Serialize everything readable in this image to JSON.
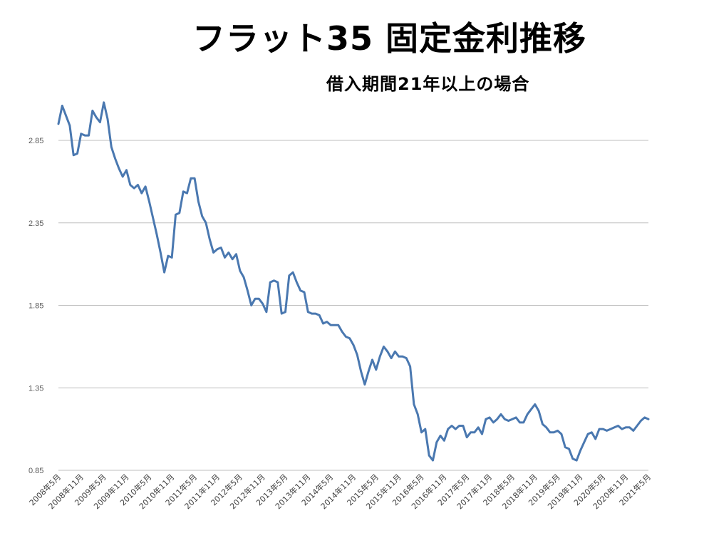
{
  "chart_data": {
    "type": "line",
    "title": "フラット35 固定金利推移",
    "subtitle": "借入期間21年以上の場合",
    "xlabel": "",
    "ylabel": "",
    "ylim": [
      0.85,
      3.05
    ],
    "y_ticks": [
      "0.85",
      "1.35",
      "1.85",
      "2.35",
      "2.85"
    ],
    "x_ticks": [
      "2008年5月",
      "2008年11月",
      "2009年5月",
      "2009年11月",
      "2010年5月",
      "2010年11月",
      "2011年5月",
      "2011年11月",
      "2012年5月",
      "2012年11月",
      "2013年5月",
      "2013年11月",
      "2014年5月",
      "2014年11月",
      "2015年5月",
      "2015年11月",
      "2016年5月",
      "2016年11月",
      "2017年5月",
      "2017年11月",
      "2018年5月",
      "2018年11月",
      "2019年5月",
      "2019年11月",
      "2020年5月",
      "2020年11月",
      "2021年5月"
    ],
    "grid": true,
    "series": [
      {
        "name": "",
        "color": "#4a78b0",
        "values": [
          2.95,
          3.06,
          3.0,
          2.94,
          2.76,
          2.77,
          2.89,
          2.88,
          2.88,
          3.03,
          2.99,
          2.96,
          3.08,
          2.98,
          2.81,
          2.74,
          2.68,
          2.63,
          2.67,
          2.58,
          2.56,
          2.58,
          2.53,
          2.57,
          2.48,
          2.38,
          2.28,
          2.17,
          2.05,
          2.15,
          2.14,
          2.4,
          2.41,
          2.54,
          2.53,
          2.62,
          2.62,
          2.48,
          2.39,
          2.35,
          2.25,
          2.17,
          2.19,
          2.2,
          2.14,
          2.17,
          2.13,
          2.16,
          2.06,
          2.02,
          1.94,
          1.85,
          1.89,
          1.89,
          1.86,
          1.81,
          1.99,
          2.0,
          1.99,
          1.8,
          1.81,
          2.03,
          2.05,
          1.99,
          1.94,
          1.93,
          1.81,
          1.8,
          1.8,
          1.79,
          1.74,
          1.75,
          1.73,
          1.73,
          1.73,
          1.69,
          1.66,
          1.65,
          1.61,
          1.55,
          1.45,
          1.37,
          1.45,
          1.52,
          1.46,
          1.54,
          1.6,
          1.57,
          1.53,
          1.57,
          1.54,
          1.54,
          1.53,
          1.48,
          1.25,
          1.19,
          1.08,
          1.1,
          0.94,
          0.91,
          1.02,
          1.06,
          1.03,
          1.1,
          1.12,
          1.1,
          1.12,
          1.12,
          1.05,
          1.08,
          1.08,
          1.11,
          1.07,
          1.16,
          1.17,
          1.14,
          1.16,
          1.19,
          1.16,
          1.15,
          1.16,
          1.17,
          1.14,
          1.14,
          1.19,
          1.22,
          1.25,
          1.21,
          1.13,
          1.11,
          1.08,
          1.08,
          1.09,
          1.07,
          0.99,
          0.98,
          0.92,
          0.91,
          0.97,
          1.02,
          1.07,
          1.08,
          1.04,
          1.1,
          1.1,
          1.09,
          1.1,
          1.11,
          1.12,
          1.1,
          1.11,
          1.11,
          1.09,
          1.12,
          1.15,
          1.17,
          1.16
        ]
      }
    ]
  }
}
